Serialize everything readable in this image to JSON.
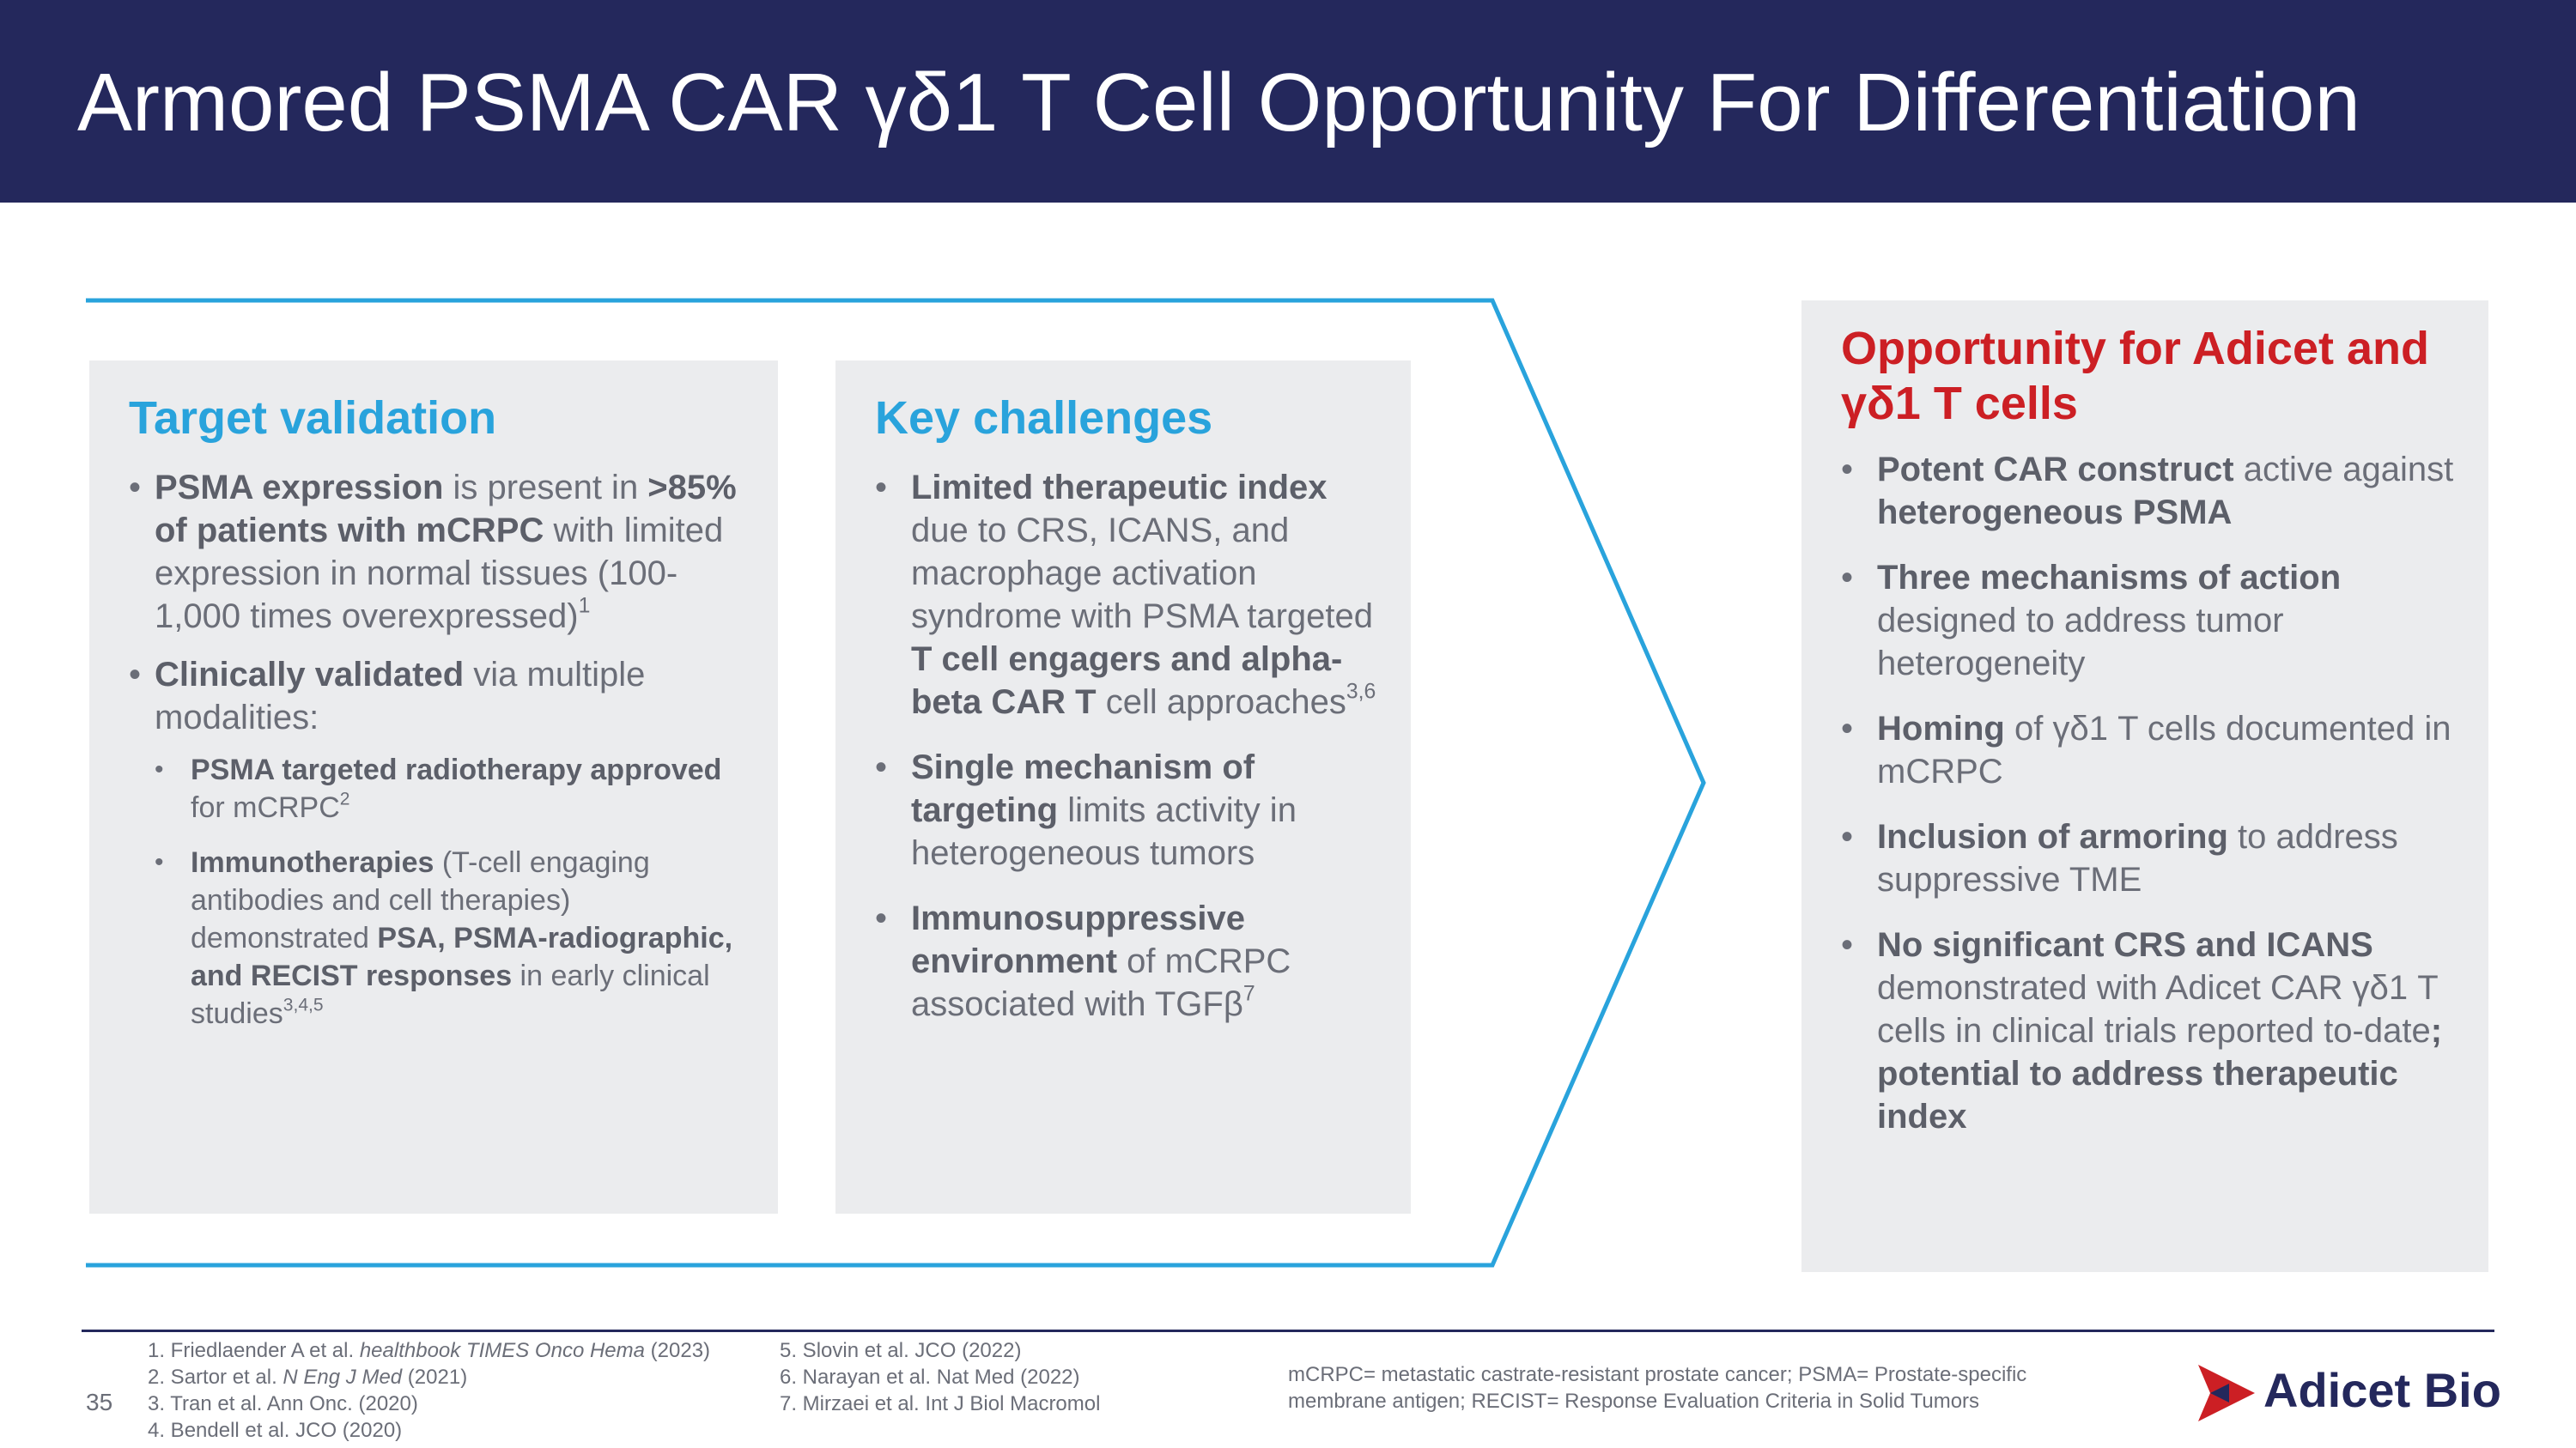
{
  "header": {
    "title": "Armored PSMA CAR γδ1 T Cell Opportunity For Differentiation"
  },
  "colors": {
    "header_bg": "#24285c",
    "accent_blue": "#29a3dc",
    "accent_red": "#cc1f24",
    "panel_bg": "#ebecee",
    "text_gray": "#6b6e78"
  },
  "target_validation": {
    "heading": "Target validation",
    "b1_bold": "PSMA expression",
    "b1_t1": " is present in ",
    "b1_bold2": ">85% of patients with mCRPC",
    "b1_t2": " with limited expression in normal tissues (100-1,000 times overexpressed)",
    "b1_sup": "1",
    "b2_bold": "Clinically validated",
    "b2_t1": " via multiple modalities:",
    "s1_bold": "PSMA targeted radiotherapy approved",
    "s1_t1": " for mCRPC",
    "s1_sup": "2",
    "s2_bold": "Immunotherapies",
    "s2_t1": " (T-cell engaging antibodies and cell therapies) demonstrated ",
    "s2_bold2": "PSA, PSMA-radiographic, and RECIST responses",
    "s2_t2": " in early clinical studies",
    "s2_sup": "3,4,5"
  },
  "key_challenges": {
    "heading": "Key challenges",
    "b1_bold": "Limited therapeutic index",
    "b1_t1": " due to CRS, ICANS, and macrophage activation syndrome with PSMA targeted ",
    "b1_bold2": "T cell engagers and alpha-beta CAR T",
    "b1_t2": " cell approaches",
    "b1_sup": "3,6",
    "b2_bold": "Single mechanism of targeting",
    "b2_t1": " limits activity in heterogeneous tumors",
    "b3_bold": "Immunosuppressive environment",
    "b3_t1": " of mCRPC associated with TGFβ",
    "b3_sup": "7"
  },
  "opportunity": {
    "heading": "Opportunity for Adicet and γδ1 T cells",
    "b1_bold": "Potent CAR construct",
    "b1_t1": " active against ",
    "b1_bold2": "heterogeneous PSMA",
    "b2_bold": "Three mechanisms of action",
    "b2_t1": " designed to address tumor heterogeneity",
    "b3_bold": "Homing",
    "b3_t1": " of γδ1 T cells documented in mCRPC",
    "b4_bold": "Inclusion of armoring",
    "b4_t1": " to address suppressive TME",
    "b5_bold": "No significant CRS and ICANS",
    "b5_t1": " demonstrated with Adicet CAR γδ1 T cells in clinical trials reported to-date",
    "b5_bold2": "; potential to address therapeutic index"
  },
  "footer": {
    "page_number": "35",
    "refs_left": [
      {
        "pre": "1. Friedlaender A et al. ",
        "ital": "healthbook TIMES Onco Hema",
        "post": " (2023)"
      },
      {
        "pre": "2. Sartor et al. ",
        "ital": "N Eng J Med",
        "post": " (2021)"
      },
      {
        "pre": "3. Tran et al. Ann Onc. (2020)",
        "ital": "",
        "post": ""
      },
      {
        "pre": "4. Bendell et al. JCO (2020)",
        "ital": "",
        "post": ""
      }
    ],
    "refs_mid": [
      "5. Slovin et al. JCO (2022)",
      "6. Narayan et al. Nat Med (2022)",
      "7.  Mirzaei et al. Int J Biol Macromol"
    ],
    "abbrev_line1": "mCRPC= metastatic castrate-resistant prostate cancer; PSMA= Prostate-specific",
    "abbrev_line2": "membrane antigen; RECIST= Response Evaluation Criteria in Solid Tumors",
    "logo_text": "Adicet Bio"
  }
}
